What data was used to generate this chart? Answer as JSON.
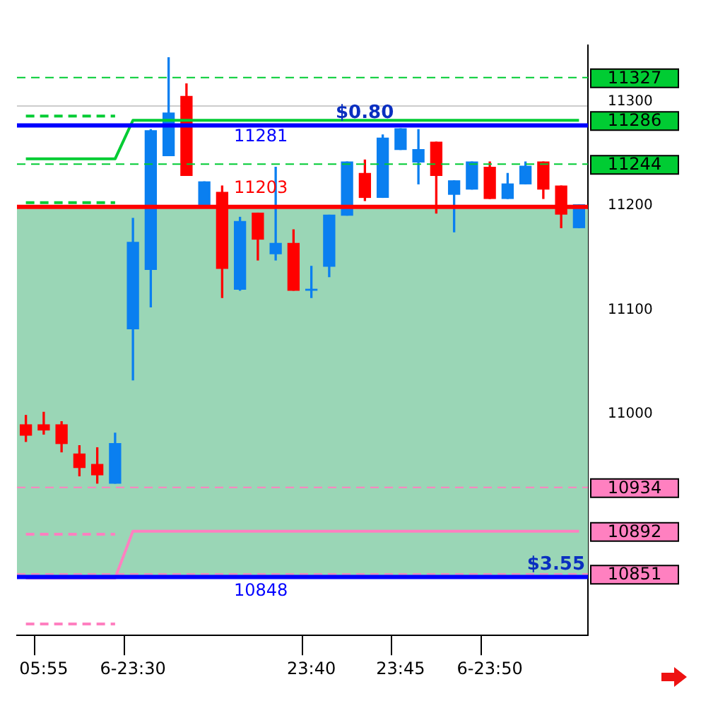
{
  "chart_data": {
    "type": "candlestick",
    "categories": [
      null,
      "05:55",
      null,
      null,
      null,
      null,
      "6-23:30",
      null,
      null,
      null,
      null,
      null,
      null,
      null,
      null,
      null,
      "23:40",
      null,
      null,
      null,
      null,
      "23:45",
      null,
      null,
      null,
      null,
      "6-23:50",
      null,
      null,
      null,
      null,
      null
    ],
    "ohlc": [
      [
        10994,
        11003,
        10978,
        10984
      ],
      [
        10994,
        11006,
        10985,
        10989
      ],
      [
        10994,
        10997,
        10968,
        10976
      ],
      [
        10966,
        10974,
        10945,
        10953
      ],
      [
        10956,
        10972,
        10938,
        10946
      ],
      [
        10938,
        10986,
        10938,
        10976
      ],
      [
        11086,
        11192,
        11037,
        11169
      ],
      [
        11143,
        11277,
        11107,
        11276
      ],
      [
        11252,
        11346,
        11252,
        11293
      ],
      [
        11309,
        11321,
        11233,
        11233
      ],
      [
        11205,
        11227,
        11205,
        11227
      ],
      [
        11217,
        11223,
        11116,
        11144
      ],
      [
        11124,
        11193,
        11123,
        11189
      ],
      [
        11197,
        11197,
        11152,
        11172
      ],
      [
        11158,
        11241,
        11152,
        11168
      ],
      [
        11168,
        11181,
        11123,
        11123
      ],
      [
        11123,
        11146,
        11116,
        11124
      ],
      [
        11146,
        11195,
        11136,
        11195
      ],
      [
        11195,
        11246,
        11195,
        11246
      ],
      [
        11235,
        11248,
        11209,
        11212
      ],
      [
        11212,
        11272,
        11212,
        11269
      ],
      [
        11258,
        11278,
        11258,
        11278
      ],
      [
        11246,
        11277,
        11225,
        11258
      ],
      [
        11265,
        11265,
        11197,
        11233
      ],
      [
        11215,
        11228,
        11179,
        11228
      ],
      [
        11220,
        11246,
        11220,
        11246
      ],
      [
        11241,
        11246,
        11211,
        11211
      ],
      [
        11211,
        11235,
        11211,
        11225
      ],
      [
        11225,
        11246,
        11225,
        11242
      ],
      [
        11246,
        11246,
        11211,
        11220
      ],
      [
        11223,
        11223,
        11183,
        11196
      ],
      [
        11183,
        11205,
        11183,
        11205
      ]
    ],
    "colors": [
      "#ff0000",
      "#ff0000",
      "#ff0000",
      "#ff0000",
      "#ff0000",
      "#0a7ff0",
      "#0a7ff0",
      "#0a7ff0",
      "#0a7ff0",
      "#ff0000",
      "#0a7ff0",
      "#ff0000",
      "#0a7ff0",
      "#ff0000",
      "#0a7ff0",
      "#ff0000",
      "#0a7ff0",
      "#0a7ff0",
      "#0a7ff0",
      "#ff0000",
      "#0a7ff0",
      "#0a7ff0",
      "#0a7ff0",
      "#ff0000",
      "#0a7ff0",
      "#0a7ff0",
      "#ff0000",
      "#0a7ff0",
      "#0a7ff0",
      "#ff0000",
      "#ff0000",
      "#0a7ff0"
    ],
    "series": [
      {
        "type": "line",
        "color": "#00cc33",
        "line_style": "solid",
        "values": [
          11249,
          11249,
          11249,
          11249,
          11249,
          11249,
          11286,
          11286,
          11286,
          11286,
          11286,
          11286,
          11286,
          11286,
          11286,
          11286,
          11286,
          11286,
          11286,
          11286,
          11286,
          11286,
          11286,
          11286,
          11286,
          11286,
          11286,
          11286,
          11286,
          11286,
          11286,
          11286
        ],
        "value_labels": [
          null,
          null,
          null,
          null,
          null,
          null,
          null,
          null,
          null,
          null,
          null,
          null,
          null,
          null,
          null,
          null,
          null,
          null,
          null,
          null,
          null,
          null,
          null,
          null,
          null,
          null,
          null,
          null,
          null,
          null,
          null,
          "11286"
        ]
      },
      {
        "type": "line",
        "color": "#ff80c0",
        "line_style": "solid",
        "values": [
          10847,
          10847,
          10847,
          10847,
          10847,
          10847,
          10892,
          10892,
          10892,
          10892,
          10892,
          10892,
          10892,
          10892,
          10892,
          10892,
          10892,
          10892,
          10892,
          10892,
          10892,
          10892,
          10892,
          10892,
          10892,
          10892,
          10892,
          10892,
          10892,
          10892,
          10892,
          10892
        ],
        "value_labels": [
          null,
          null,
          null,
          null,
          null,
          null,
          null,
          null,
          null,
          null,
          null,
          null,
          null,
          null,
          null,
          null,
          null,
          null,
          null,
          null,
          null,
          null,
          null,
          null,
          null,
          null,
          null,
          null,
          null,
          null,
          null,
          "10892"
        ]
      },
      {
        "type": "line",
        "color": "#00cc33",
        "line_style": "dashed",
        "values": [
          11290,
          11290,
          11290,
          11290,
          11290,
          11290,
          null,
          null,
          null,
          null,
          null,
          null,
          null,
          null,
          null,
          null,
          null,
          null,
          null,
          null,
          null,
          null,
          null,
          null,
          null,
          null,
          null,
          null,
          null,
          null,
          null,
          null
        ]
      },
      {
        "type": "line",
        "color": "#00cc33",
        "line_style": "dashed",
        "values": [
          11207,
          11207,
          11207,
          11207,
          11207,
          11207,
          null,
          null,
          null,
          null,
          null,
          null,
          null,
          null,
          null,
          null,
          null,
          null,
          null,
          null,
          null,
          null,
          null,
          null,
          null,
          null,
          null,
          null,
          null,
          null,
          null,
          null
        ]
      },
      {
        "type": "line",
        "color": "#ff80c0",
        "line_style": "dashed",
        "values": [
          10889,
          10889,
          10889,
          10889,
          10889,
          10889,
          null,
          null,
          null,
          null,
          null,
          null,
          null,
          null,
          null,
          null,
          null,
          null,
          null,
          null,
          null,
          null,
          null,
          null,
          null,
          null,
          null,
          null,
          null,
          null,
          null,
          null
        ]
      },
      {
        "type": "line",
        "color": "#ff80c0",
        "line_style": "dashed",
        "values": [
          10803,
          10803,
          10803,
          10803,
          10803,
          10803,
          null,
          null,
          null,
          null,
          null,
          null,
          null,
          null,
          null,
          null,
          null,
          null,
          null,
          null,
          null,
          null,
          null,
          null,
          null,
          null,
          null,
          null,
          null,
          null,
          null,
          null
        ]
      }
    ],
    "bands": [
      {
        "axis": "y",
        "from": 10848,
        "to": 11203,
        "color": "#9ad6b6"
      }
    ],
    "ref_lines": [
      {
        "axis": "y",
        "value": 11327,
        "label": "11327",
        "color": "#00cc33",
        "line_style": "dashed"
      },
      {
        "axis": "y",
        "value": 11244,
        "label": "11244",
        "color": "#00cc33",
        "line_style": "dashed"
      },
      {
        "axis": "y",
        "value": 10934,
        "label": "10934",
        "color": "#ff80c0",
        "line_style": "dashed"
      },
      {
        "axis": "y",
        "value": 10851,
        "label": "10851",
        "color": "#ff80c0",
        "line_style": "dashed"
      },
      {
        "axis": "y",
        "value": 11281,
        "label": "11281",
        "color": "#0000ff",
        "line_style": "solid"
      },
      {
        "axis": "y",
        "value": 11203,
        "label": "11203",
        "color": "#ff0000",
        "line_style": "solid"
      },
      {
        "axis": "y",
        "value": 10848,
        "label": "10848",
        "color": "#0000ff",
        "line_style": "solid"
      }
    ],
    "annotations": [
      {
        "text": "$0.80",
        "y": 11281
      },
      {
        "text": "$3.55",
        "y": 10848
      }
    ],
    "ylim": [
      10792,
      11358
    ],
    "yticks": [
      11300,
      11200,
      11100,
      11000
    ],
    "grid": true,
    "legend": false
  }
}
